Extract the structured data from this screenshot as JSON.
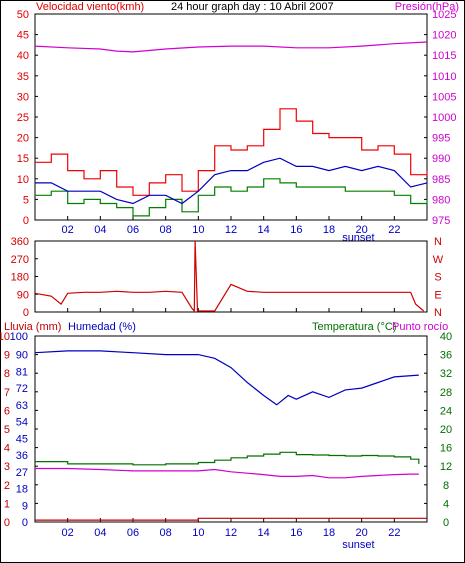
{
  "colors": {
    "wind": "#e00000",
    "gust": "#f00000",
    "wind_dir": "#d00000",
    "pressure": "#d000d0",
    "humidity": "#0000c0",
    "temperature": "#007000",
    "dewpoint": "#d000d0",
    "rain": "#c00000",
    "avg_wind": "#0000c0",
    "wind_green": "#008000"
  },
  "header": {
    "left_title": "Velocidad viento(kmh)",
    "center_title": "24 hour graph day : 10 Abril 2007",
    "right_title": "Presión(hPa)"
  },
  "x_axis": {
    "ticks": [
      "02",
      "04",
      "06",
      "08",
      "10",
      "12",
      "14",
      "16",
      "18",
      "20",
      "22"
    ],
    "sunset_label": "sunset"
  },
  "panel3_titles": {
    "rain": "Lluvia (mm)",
    "humidity": "Humedad (%)",
    "temperature": "Temperatura (°C)",
    "dewpoint": "Punto rocío"
  },
  "chart_data": [
    {
      "type": "line",
      "title": "24 hour graph day : 10 Abril 2007",
      "x_range_hours": [
        0,
        24
      ],
      "x_ticks": [
        "02",
        "04",
        "06",
        "08",
        "10",
        "12",
        "14",
        "16",
        "18",
        "20",
        "22"
      ],
      "left_axis": {
        "label": "Velocidad viento(kmh)",
        "ticks": [
          0,
          5,
          10,
          15,
          20,
          25,
          30,
          35,
          40,
          45,
          50
        ],
        "ylim": [
          0,
          50
        ]
      },
      "right_axis": {
        "label": "Presión(hPa)",
        "ticks": [
          975,
          980,
          985,
          990,
          995,
          1000,
          1005,
          1010,
          1015,
          1020,
          1025
        ],
        "ylim": [
          975,
          1025
        ]
      },
      "series": [
        {
          "name": "Presión(hPa)",
          "axis": "right",
          "x": [
            0,
            2,
            4,
            5,
            6,
            8,
            10,
            12,
            14,
            16,
            18,
            20,
            22,
            24
          ],
          "values": [
            1017.2,
            1016.8,
            1016.5,
            1016.0,
            1015.8,
            1016.5,
            1017.0,
            1017.2,
            1017.2,
            1016.8,
            1016.8,
            1017.2,
            1017.8,
            1018.2
          ]
        },
        {
          "axis": "left",
          "x": [
            0,
            1,
            2,
            3,
            4,
            5,
            6,
            7,
            8,
            9,
            10,
            11,
            12,
            13,
            14,
            15,
            16,
            17,
            18,
            19,
            20,
            21,
            22,
            23,
            24
          ],
          "values": [
            14,
            16,
            12,
            10,
            12,
            8,
            6,
            9,
            11,
            7,
            12,
            18,
            17,
            18,
            22,
            27,
            24,
            21,
            20,
            20,
            17,
            18,
            16,
            11,
            12
          ]
        },
        {
          "axis": "left",
          "x": [
            0,
            1,
            2,
            3,
            4,
            5,
            6,
            7,
            8,
            9,
            10,
            11,
            12,
            13,
            14,
            15,
            16,
            17,
            18,
            19,
            20,
            21,
            22,
            23,
            24
          ],
          "values": [
            9,
            9,
            7,
            7,
            7,
            5,
            4,
            6,
            6,
            4,
            7,
            11,
            12,
            12,
            14,
            15,
            13,
            13,
            12,
            13,
            12,
            13,
            12,
            8,
            9
          ]
        },
        {
          "axis": "left",
          "x": [
            0,
            1,
            2,
            3,
            4,
            5,
            6,
            7,
            8,
            9,
            10,
            11,
            12,
            13,
            14,
            15,
            16,
            17,
            18,
            19,
            20,
            21,
            22,
            23,
            24
          ],
          "values": [
            6,
            7,
            4,
            5,
            4,
            3,
            1,
            3,
            5,
            2,
            6,
            8,
            7,
            8,
            10,
            9,
            8,
            8,
            8,
            7,
            7,
            7,
            6,
            4,
            5
          ]
        }
      ]
    },
    {
      "type": "line",
      "x_range_hours": [
        0,
        24
      ],
      "left_axis": {
        "ticks": [
          0,
          90,
          180,
          270,
          360
        ],
        "ylim": [
          0,
          360
        ]
      },
      "right_axis_labels": [
        "N",
        "W",
        "S",
        "E",
        "N"
      ],
      "series": [
        {
          "x": [
            0,
            1,
            1.6,
            2,
            3,
            4,
            5,
            6,
            7,
            8,
            9,
            9.6,
            9.75,
            9.8,
            9.95,
            10.5,
            11,
            12,
            13,
            14,
            16,
            18,
            20,
            22,
            23,
            23.3,
            23.8
          ],
          "values": [
            95,
            80,
            40,
            95,
            100,
            100,
            105,
            100,
            100,
            105,
            100,
            20,
            5,
            360,
            5,
            5,
            5,
            140,
            105,
            100,
            100,
            100,
            100,
            100,
            100,
            40,
            5
          ]
        }
      ]
    },
    {
      "type": "line",
      "x_range_hours": [
        0,
        24
      ],
      "left_axis": {
        "label": "Lluvia (mm)",
        "ticks": [
          0,
          1,
          2,
          3,
          4,
          5,
          6,
          7,
          8,
          9,
          10
        ],
        "ylim": [
          0,
          10
        ]
      },
      "left_axis_2": {
        "label": "Humedad (%)",
        "ticks": [
          0,
          9,
          18,
          27,
          36,
          45,
          54,
          63,
          72,
          81,
          90,
          100
        ]
      },
      "right_axis": {
        "label": "Temperatura (°C)",
        "ticks": [
          0,
          4,
          8,
          12,
          16,
          20,
          24,
          28,
          32,
          36,
          40
        ],
        "ylim": [
          0,
          40
        ]
      },
      "series": [
        {
          "name": "Humedad (%)",
          "axis": "left_humidity",
          "x": [
            0,
            2,
            4,
            6,
            8,
            10,
            11,
            12,
            13,
            14,
            14.8,
            15.5,
            16,
            17,
            18,
            19,
            20,
            21,
            22,
            23.5
          ],
          "values": [
            91,
            92,
            92,
            91,
            90,
            90,
            88,
            83,
            75,
            68,
            63,
            68,
            66,
            70,
            67,
            71,
            72,
            75,
            78,
            79
          ]
        },
        {
          "name": "Temperatura (°C)",
          "axis": "right",
          "x": [
            0,
            2,
            4,
            6,
            8,
            10,
            11,
            12,
            13,
            14,
            15,
            16,
            17,
            18,
            19,
            20,
            21,
            22,
            23,
            23.5
          ],
          "values": [
            13,
            12.5,
            12.5,
            12.3,
            12.5,
            12.8,
            13.3,
            13.8,
            14.2,
            14.6,
            15,
            14.5,
            14.4,
            14.3,
            14.2,
            14.3,
            14.2,
            14.0,
            13.5,
            12.5
          ]
        },
        {
          "name": "Punto rocío",
          "axis": "right",
          "x": [
            0,
            2,
            4,
            6,
            8,
            10,
            11,
            12,
            13,
            14,
            15,
            16,
            17,
            18,
            19,
            20,
            21,
            22,
            23,
            23.5
          ],
          "values": [
            11.5,
            11.5,
            11.3,
            11,
            11,
            11,
            11.3,
            10.8,
            10.5,
            10.2,
            9.8,
            9.8,
            10,
            9.5,
            9.5,
            9.8,
            10,
            10.2,
            10.3,
            10.3
          ]
        },
        {
          "name": "Lluvia (mm)",
          "axis": "left_rain",
          "x": [
            0,
            2,
            4,
            6,
            8,
            10,
            12,
            14,
            16,
            18,
            20,
            22,
            24
          ],
          "values": [
            0.1,
            0.1,
            0.1,
            0.1,
            0.1,
            0.2,
            0.2,
            0.2,
            0.2,
            0.2,
            0.2,
            0.2,
            0.2
          ]
        }
      ]
    }
  ]
}
